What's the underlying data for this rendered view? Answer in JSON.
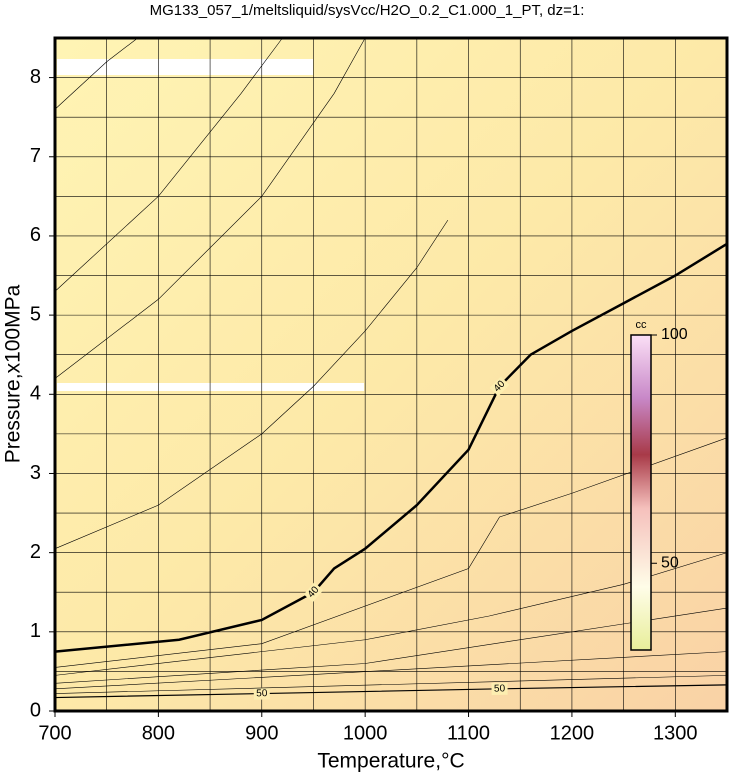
{
  "chart_data": {
    "type": "contour",
    "title": "MG133_057_1/meltsliquid/sysVcc/H2O_0.2_C1.000_1_PT, dz=1:",
    "x_label": "Temperature,°C",
    "y_label": "Pressure,x100MPa",
    "xlim": [
      700,
      1350
    ],
    "ylim": [
      0,
      8.5
    ],
    "xticks": [
      700,
      800,
      900,
      1000,
      1100,
      1200,
      1300
    ],
    "yticks": [
      0,
      1,
      2,
      3,
      4,
      5,
      6,
      7,
      8
    ],
    "xgrid": [
      700,
      750,
      800,
      850,
      900,
      950,
      1000,
      1050,
      1100,
      1150,
      1200,
      1250,
      1300,
      1350
    ],
    "ygrid": [
      0.5,
      1,
      1.5,
      2,
      2.5,
      3,
      3.5,
      4,
      4.5,
      5,
      5.5,
      6,
      6.5,
      7,
      7.5,
      8
    ],
    "grid": true,
    "color": "#000000",
    "contours": [
      {
        "label": "40",
        "line_width": 2.5,
        "x": [
          700,
          820,
          900,
          950,
          970,
          1000,
          1050,
          1100,
          1130,
          1160,
          1200,
          1250,
          1300,
          1350
        ],
        "y": [
          0.75,
          0.9,
          1.15,
          1.5,
          1.8,
          2.05,
          2.6,
          3.3,
          4.1,
          4.5,
          4.8,
          5.15,
          5.5,
          5.9
        ]
      },
      {
        "label": "50",
        "line_width": 1.2,
        "x": [
          700,
          900,
          1130,
          1350
        ],
        "y": [
          0.17,
          0.22,
          0.28,
          0.33
        ]
      },
      {
        "line_width": 0.6,
        "x": [
          700,
          800,
          900,
          950,
          1000,
          1050,
          1080
        ],
        "y": [
          2.05,
          2.6,
          3.5,
          4.1,
          4.8,
          5.6,
          6.2
        ]
      },
      {
        "line_width": 0.6,
        "x": [
          700,
          800,
          900,
          970,
          1000
        ],
        "y": [
          4.2,
          5.2,
          6.5,
          7.8,
          8.5
        ]
      },
      {
        "line_width": 0.6,
        "x": [
          700,
          800,
          880,
          920
        ],
        "y": [
          5.3,
          6.5,
          7.8,
          8.5
        ]
      },
      {
        "line_width": 0.6,
        "x": [
          700,
          750,
          780
        ],
        "y": [
          7.6,
          8.2,
          8.5
        ]
      },
      {
        "line_width": 0.6,
        "x": [
          700,
          900,
          1100,
          1130,
          1200,
          1350
        ],
        "y": [
          0.55,
          0.85,
          1.8,
          2.45,
          2.75,
          3.45
        ]
      },
      {
        "line_width": 0.6,
        "x": [
          700,
          1000,
          1120,
          1250,
          1350
        ],
        "y": [
          0.45,
          0.9,
          1.2,
          1.6,
          2.0
        ]
      },
      {
        "line_width": 0.6,
        "x": [
          700,
          1000,
          1350
        ],
        "y": [
          0.35,
          0.6,
          1.3
        ]
      },
      {
        "line_width": 0.6,
        "x": [
          700,
          1350
        ],
        "y": [
          0.28,
          0.75
        ]
      },
      {
        "line_width": 0.6,
        "x": [
          700,
          1350
        ],
        "y": [
          0.22,
          0.45
        ]
      }
    ],
    "colorbar": {
      "label": "cc",
      "lim": [
        31,
        100
      ],
      "ticks": [
        50,
        100
      ]
    }
  }
}
